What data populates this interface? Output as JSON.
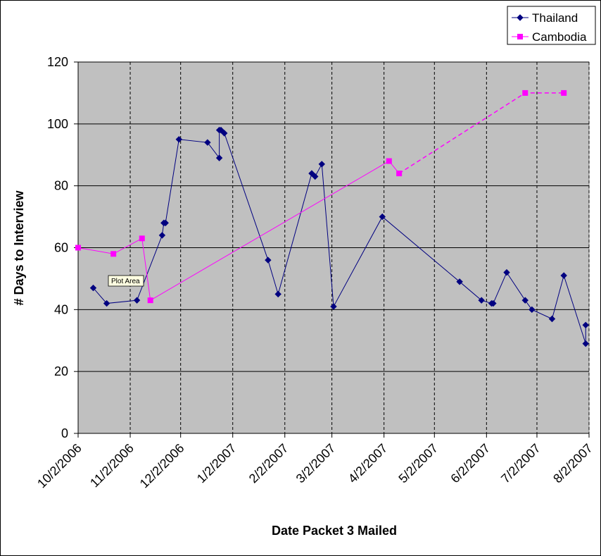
{
  "chart_data": {
    "type": "line",
    "title": "",
    "xlabel": "Date Packet 3 Mailed",
    "ylabel": "# Days to Interview",
    "ylim": [
      0,
      120
    ],
    "yticks": [
      0,
      20,
      40,
      60,
      80,
      100,
      120
    ],
    "xlim": [
      "2006-10-02",
      "2007-08-02"
    ],
    "xticks": [
      {
        "date": "2006-10-02",
        "label": "10/2/2006"
      },
      {
        "date": "2006-11-02",
        "label": "11/2/2006"
      },
      {
        "date": "2006-12-02",
        "label": "12/2/2006"
      },
      {
        "date": "2007-01-02",
        "label": "1/2/2007"
      },
      {
        "date": "2007-02-02",
        "label": "2/2/2007"
      },
      {
        "date": "2007-03-02",
        "label": "3/2/2007"
      },
      {
        "date": "2007-04-02",
        "label": "4/2/2007"
      },
      {
        "date": "2007-05-02",
        "label": "5/2/2007"
      },
      {
        "date": "2007-06-02",
        "label": "6/2/2007"
      },
      {
        "date": "2007-07-02",
        "label": "7/2/2007"
      },
      {
        "date": "2007-08-02",
        "label": "8/2/2007"
      }
    ],
    "grid": {
      "horizontal": true,
      "vertical_dashed": true
    },
    "plot_background": "#C0C0C0",
    "legend_position": "top-right",
    "annotation": "Plot Area",
    "series": [
      {
        "name": "Thailand",
        "color": "#000080",
        "marker": "diamond",
        "points": [
          {
            "x": "2006-10-11",
            "y": 47
          },
          {
            "x": "2006-10-19",
            "y": 42
          },
          {
            "x": "2006-11-06",
            "y": 43
          },
          {
            "x": "2006-11-21",
            "y": 64
          },
          {
            "x": "2006-11-22",
            "y": 68
          },
          {
            "x": "2006-11-23",
            "y": 68
          },
          {
            "x": "2006-12-01",
            "y": 95
          },
          {
            "x": "2006-12-18",
            "y": 94
          },
          {
            "x": "2006-12-25",
            "y": 89
          },
          {
            "x": "2006-12-25",
            "y": 98
          },
          {
            "x": "2006-12-26",
            "y": 98
          },
          {
            "x": "2006-12-28",
            "y": 97
          },
          {
            "x": "2007-01-23",
            "y": 56
          },
          {
            "x": "2007-01-29",
            "y": 45
          },
          {
            "x": "2007-02-18",
            "y": 84
          },
          {
            "x": "2007-02-20",
            "y": 83
          },
          {
            "x": "2007-02-24",
            "y": 87
          },
          {
            "x": "2007-03-03",
            "y": 41
          },
          {
            "x": "2007-04-01",
            "y": 70
          },
          {
            "x": "2007-05-17",
            "y": 49
          },
          {
            "x": "2007-05-30",
            "y": 43
          },
          {
            "x": "2007-06-05",
            "y": 42
          },
          {
            "x": "2007-06-06",
            "y": 42
          },
          {
            "x": "2007-06-14",
            "y": 52
          },
          {
            "x": "2007-06-25",
            "y": 43
          },
          {
            "x": "2007-06-29",
            "y": 40
          },
          {
            "x": "2007-07-11",
            "y": 37
          },
          {
            "x": "2007-07-18",
            "y": 51
          },
          {
            "x": "2007-07-31",
            "y": 29
          },
          {
            "x": "2007-07-31",
            "y": 35
          }
        ]
      },
      {
        "name": "Cambodia",
        "color": "#FF00FF",
        "marker": "square",
        "points": [
          {
            "x": "2006-10-02",
            "y": 60
          },
          {
            "x": "2006-10-23",
            "y": 58
          },
          {
            "x": "2006-11-09",
            "y": 63
          },
          {
            "x": "2006-11-14",
            "y": 43
          },
          {
            "x": "2007-04-05",
            "y": 88
          },
          {
            "x": "2007-04-11",
            "y": 84
          },
          {
            "x": "2007-06-25",
            "y": 110
          },
          {
            "x": "2007-07-18",
            "y": 110
          }
        ],
        "dashed_from_index": 5
      }
    ]
  }
}
